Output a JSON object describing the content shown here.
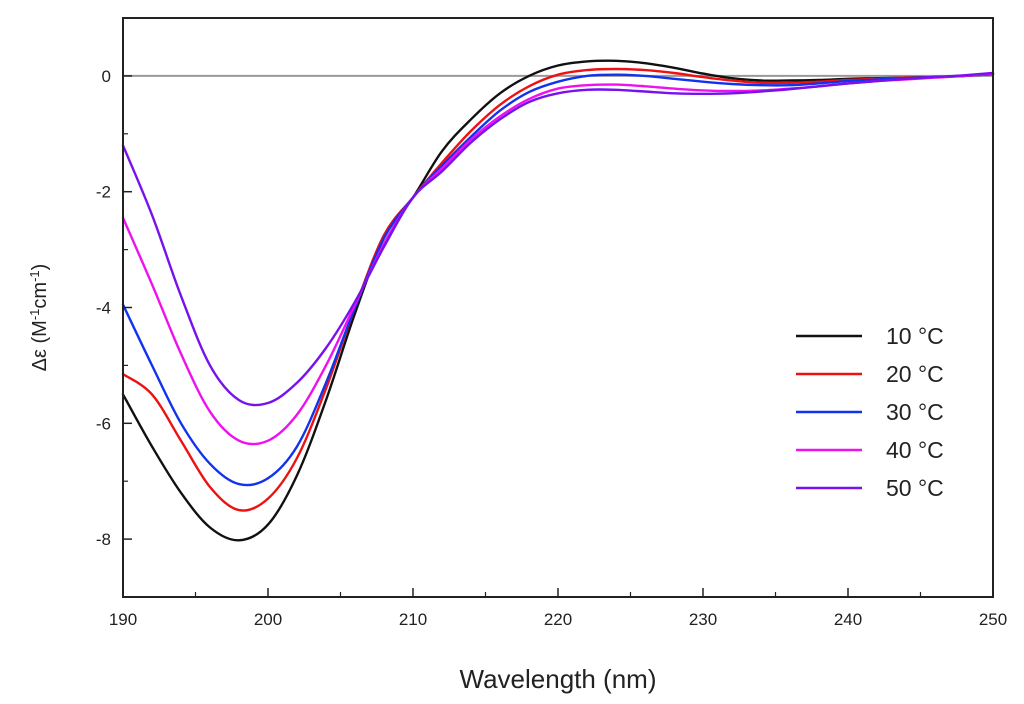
{
  "chart_data": {
    "type": "line",
    "title": "",
    "xlabel": "Wavelength (nm)",
    "ylabel": {
      "prefix": "Δε (M",
      "exp1": "-1",
      "mid": "cm",
      "exp2": "-1",
      "suffix": ")"
    },
    "xlim": [
      190,
      250
    ],
    "ylim": [
      -9,
      1
    ],
    "x_ticks": [
      190,
      200,
      210,
      220,
      230,
      240,
      250
    ],
    "x_tick_labels": [
      "190",
      "200",
      "210",
      "220",
      "230",
      "240",
      "250"
    ],
    "y_ticks": [
      0,
      -2,
      -4,
      -6,
      -8
    ],
    "y_tick_labels": [
      "0",
      "-2",
      "-4",
      "-6",
      "-8"
    ],
    "zero_line": true,
    "grid": false,
    "legend_position": "right",
    "series": [
      {
        "name": "10 °C",
        "color": "#111111",
        "points": [
          [
            190,
            -5.5
          ],
          [
            192,
            -6.4
          ],
          [
            194,
            -7.2
          ],
          [
            196,
            -7.8
          ],
          [
            198,
            -8.02
          ],
          [
            200,
            -7.75
          ],
          [
            202,
            -6.9
          ],
          [
            204,
            -5.6
          ],
          [
            206,
            -4.1
          ],
          [
            208,
            -2.8
          ],
          [
            210,
            -2.1
          ],
          [
            212,
            -1.3
          ],
          [
            214,
            -0.75
          ],
          [
            216,
            -0.3
          ],
          [
            218,
            0.0
          ],
          [
            220,
            0.18
          ],
          [
            222,
            0.25
          ],
          [
            224,
            0.26
          ],
          [
            226,
            0.22
          ],
          [
            228,
            0.14
          ],
          [
            230,
            0.04
          ],
          [
            232,
            -0.04
          ],
          [
            234,
            -0.08
          ],
          [
            236,
            -0.08
          ],
          [
            238,
            -0.07
          ],
          [
            240,
            -0.05
          ],
          [
            242,
            -0.04
          ],
          [
            244,
            -0.03
          ],
          [
            246,
            -0.02
          ],
          [
            248,
            0.0
          ],
          [
            250,
            0.03
          ]
        ]
      },
      {
        "name": "20 °C",
        "color": "#ee1111",
        "points": [
          [
            190,
            -5.15
          ],
          [
            192,
            -5.5
          ],
          [
            194,
            -6.3
          ],
          [
            196,
            -7.1
          ],
          [
            198,
            -7.5
          ],
          [
            200,
            -7.3
          ],
          [
            202,
            -6.6
          ],
          [
            204,
            -5.4
          ],
          [
            206,
            -4.0
          ],
          [
            208,
            -2.75
          ],
          [
            210,
            -2.1
          ],
          [
            212,
            -1.5
          ],
          [
            214,
            -0.95
          ],
          [
            216,
            -0.5
          ],
          [
            218,
            -0.18
          ],
          [
            220,
            0.02
          ],
          [
            222,
            0.1
          ],
          [
            224,
            0.12
          ],
          [
            226,
            0.1
          ],
          [
            228,
            0.05
          ],
          [
            230,
            -0.02
          ],
          [
            232,
            -0.08
          ],
          [
            234,
            -0.12
          ],
          [
            236,
            -0.12
          ],
          [
            238,
            -0.1
          ],
          [
            240,
            -0.07
          ],
          [
            242,
            -0.05
          ],
          [
            244,
            -0.03
          ],
          [
            246,
            -0.02
          ],
          [
            248,
            0.0
          ],
          [
            250,
            0.03
          ]
        ]
      },
      {
        "name": "30 °C",
        "color": "#1133ee",
        "points": [
          [
            190,
            -3.95
          ],
          [
            192,
            -5.0
          ],
          [
            194,
            -6.0
          ],
          [
            196,
            -6.7
          ],
          [
            198,
            -7.05
          ],
          [
            200,
            -6.95
          ],
          [
            202,
            -6.4
          ],
          [
            204,
            -5.3
          ],
          [
            206,
            -4.0
          ],
          [
            208,
            -2.8
          ],
          [
            210,
            -2.1
          ],
          [
            212,
            -1.55
          ],
          [
            214,
            -1.05
          ],
          [
            216,
            -0.6
          ],
          [
            218,
            -0.28
          ],
          [
            220,
            -0.1
          ],
          [
            222,
            0.0
          ],
          [
            224,
            0.02
          ],
          [
            226,
            0.0
          ],
          [
            228,
            -0.05
          ],
          [
            230,
            -0.1
          ],
          [
            232,
            -0.14
          ],
          [
            234,
            -0.16
          ],
          [
            236,
            -0.16
          ],
          [
            238,
            -0.13
          ],
          [
            240,
            -0.09
          ],
          [
            242,
            -0.06
          ],
          [
            244,
            -0.04
          ],
          [
            246,
            -0.02
          ],
          [
            248,
            0.0
          ],
          [
            250,
            0.04
          ]
        ]
      },
      {
        "name": "40 °C",
        "color": "#ee11ee",
        "points": [
          [
            190,
            -2.45
          ],
          [
            192,
            -3.6
          ],
          [
            194,
            -4.8
          ],
          [
            196,
            -5.8
          ],
          [
            198,
            -6.3
          ],
          [
            200,
            -6.3
          ],
          [
            202,
            -5.85
          ],
          [
            204,
            -5.0
          ],
          [
            206,
            -3.95
          ],
          [
            208,
            -2.9
          ],
          [
            210,
            -2.1
          ],
          [
            212,
            -1.6
          ],
          [
            214,
            -1.1
          ],
          [
            216,
            -0.7
          ],
          [
            218,
            -0.4
          ],
          [
            220,
            -0.22
          ],
          [
            222,
            -0.16
          ],
          [
            224,
            -0.15
          ],
          [
            226,
            -0.18
          ],
          [
            228,
            -0.22
          ],
          [
            230,
            -0.25
          ],
          [
            232,
            -0.26
          ],
          [
            234,
            -0.25
          ],
          [
            236,
            -0.22
          ],
          [
            238,
            -0.18
          ],
          [
            240,
            -0.13
          ],
          [
            242,
            -0.09
          ],
          [
            244,
            -0.06
          ],
          [
            246,
            -0.03
          ],
          [
            248,
            0.0
          ],
          [
            250,
            0.04
          ]
        ]
      },
      {
        "name": "50 °C",
        "color": "#7711ee",
        "points": [
          [
            190,
            -1.2
          ],
          [
            192,
            -2.4
          ],
          [
            194,
            -3.8
          ],
          [
            196,
            -5.0
          ],
          [
            198,
            -5.6
          ],
          [
            200,
            -5.65
          ],
          [
            202,
            -5.3
          ],
          [
            204,
            -4.7
          ],
          [
            206,
            -3.9
          ],
          [
            208,
            -2.95
          ],
          [
            210,
            -2.1
          ],
          [
            212,
            -1.65
          ],
          [
            214,
            -1.15
          ],
          [
            216,
            -0.75
          ],
          [
            218,
            -0.45
          ],
          [
            220,
            -0.3
          ],
          [
            222,
            -0.24
          ],
          [
            224,
            -0.24
          ],
          [
            226,
            -0.27
          ],
          [
            228,
            -0.3
          ],
          [
            230,
            -0.31
          ],
          [
            232,
            -0.3
          ],
          [
            234,
            -0.27
          ],
          [
            236,
            -0.23
          ],
          [
            238,
            -0.18
          ],
          [
            240,
            -0.13
          ],
          [
            242,
            -0.09
          ],
          [
            244,
            -0.05
          ],
          [
            246,
            -0.02
          ],
          [
            248,
            0.01
          ],
          [
            250,
            0.05
          ]
        ]
      }
    ]
  }
}
